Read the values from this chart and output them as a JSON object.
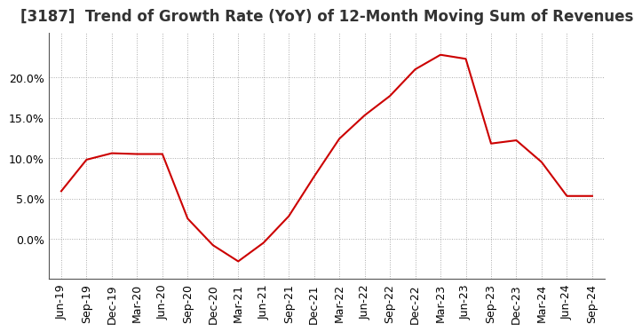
{
  "title": "[3187]  Trend of Growth Rate (YoY) of 12-Month Moving Sum of Revenues",
  "line_color": "#cc0000",
  "background_color": "#ffffff",
  "grid_color": "#aaaaaa",
  "x_labels": [
    "Jun-19",
    "Sep-19",
    "Dec-19",
    "Mar-20",
    "Jun-20",
    "Sep-20",
    "Dec-20",
    "Mar-21",
    "Jun-21",
    "Sep-21",
    "Dec-21",
    "Mar-22",
    "Jun-22",
    "Sep-22",
    "Dec-22",
    "Mar-23",
    "Jun-23",
    "Sep-23",
    "Dec-23",
    "Mar-24",
    "Jun-24",
    "Sep-24"
  ],
  "y_values": [
    0.059,
    0.098,
    0.106,
    0.105,
    0.105,
    0.025,
    -0.008,
    -0.028,
    -0.005,
    0.028,
    0.077,
    0.124,
    0.153,
    0.177,
    0.21,
    0.228,
    0.223,
    0.118,
    0.122,
    0.095,
    0.053,
    0.053
  ],
  "ylim": [
    -0.05,
    0.255
  ],
  "yticks": [
    0.0,
    0.05,
    0.1,
    0.15,
    0.2
  ],
  "title_fontsize": 12,
  "tick_fontsize": 9,
  "line_width": 1.5
}
